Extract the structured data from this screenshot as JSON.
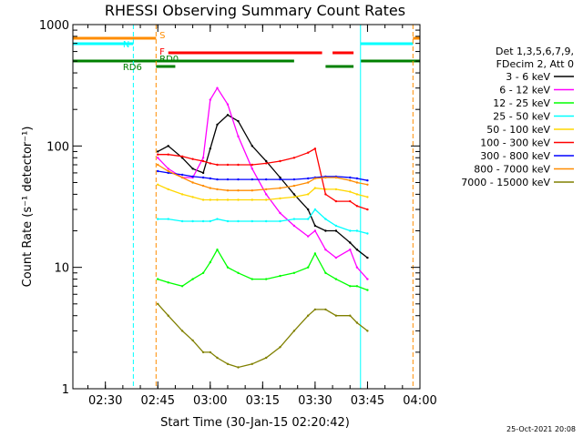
{
  "chart_data": {
    "type": "line",
    "title": "RHESSI Observing Summary Count Rates",
    "xlabel": "Start Time (30-Jan-15 02:20:42)",
    "ylabel": "Count Rate (s⁻¹ detector⁻¹)",
    "yscale": "log",
    "ylim": [
      1,
      1000
    ],
    "xlim": [
      "02:20:42",
      "04:00"
    ],
    "x_ticks": [
      "02:30",
      "02:45",
      "03:00",
      "03:15",
      "03:30",
      "03:45",
      "04:00"
    ],
    "y_ticks": [
      "1",
      "10",
      "100",
      "1000"
    ],
    "legend_header": [
      "Det 1,3,5,6,7,9,",
      "FDecim 2, Att 0"
    ],
    "legend_position": "right",
    "series": [
      {
        "name": "3 - 6 keV",
        "color": "#000000",
        "x": [
          "02:45",
          "02:48",
          "02:52",
          "02:55",
          "02:58",
          "03:00",
          "03:02",
          "03:05",
          "03:08",
          "03:12",
          "03:16",
          "03:20",
          "03:24",
          "03:28",
          "03:30",
          "03:33",
          "03:36",
          "03:40",
          "03:42",
          "03:45"
        ],
        "values": [
          90,
          100,
          80,
          65,
          60,
          95,
          150,
          180,
          160,
          100,
          75,
          55,
          40,
          30,
          22,
          20,
          20,
          16,
          14,
          12
        ]
      },
      {
        "name": "6 - 12 keV",
        "color": "#ff00ff",
        "x": [
          "02:45",
          "02:48",
          "02:52",
          "02:55",
          "02:58",
          "03:00",
          "03:02",
          "03:05",
          "03:08",
          "03:12",
          "03:16",
          "03:20",
          "03:24",
          "03:28",
          "03:30",
          "03:33",
          "03:36",
          "03:40",
          "03:42",
          "03:45"
        ],
        "values": [
          80,
          65,
          55,
          55,
          80,
          240,
          300,
          220,
          120,
          65,
          40,
          28,
          22,
          18,
          20,
          14,
          12,
          14,
          10,
          8
        ]
      },
      {
        "name": "12 - 25 keV",
        "color": "#00ff00",
        "x": [
          "02:45",
          "02:48",
          "02:52",
          "02:55",
          "02:58",
          "03:00",
          "03:02",
          "03:05",
          "03:08",
          "03:12",
          "03:16",
          "03:20",
          "03:24",
          "03:28",
          "03:30",
          "03:33",
          "03:36",
          "03:40",
          "03:42",
          "03:45"
        ],
        "values": [
          8,
          7.5,
          7,
          8,
          9,
          11,
          14,
          10,
          9,
          8,
          8,
          8.5,
          9,
          10,
          13,
          9,
          8,
          7,
          7,
          6.5
        ]
      },
      {
        "name": "25 - 50 keV",
        "color": "#00ffff",
        "x": [
          "02:45",
          "02:48",
          "02:52",
          "02:55",
          "02:58",
          "03:00",
          "03:02",
          "03:05",
          "03:08",
          "03:12",
          "03:16",
          "03:20",
          "03:24",
          "03:28",
          "03:30",
          "03:33",
          "03:36",
          "03:40",
          "03:42",
          "03:45"
        ],
        "values": [
          25,
          25,
          24,
          24,
          24,
          24,
          25,
          24,
          24,
          24,
          24,
          24,
          25,
          25,
          30,
          25,
          22,
          20,
          20,
          19
        ]
      },
      {
        "name": "50 - 100 keV",
        "color": "#ffd700",
        "x": [
          "02:45",
          "02:48",
          "02:52",
          "02:55",
          "02:58",
          "03:00",
          "03:02",
          "03:05",
          "03:08",
          "03:12",
          "03:16",
          "03:20",
          "03:24",
          "03:28",
          "03:30",
          "03:33",
          "03:36",
          "03:40",
          "03:42",
          "03:45"
        ],
        "values": [
          48,
          44,
          40,
          38,
          36,
          36,
          36,
          36,
          36,
          36,
          36,
          37,
          38,
          40,
          45,
          44,
          44,
          42,
          40,
          38
        ]
      },
      {
        "name": "100 - 300 keV",
        "color": "#ff0000",
        "x": [
          "02:45",
          "02:48",
          "02:52",
          "02:55",
          "02:58",
          "03:00",
          "03:02",
          "03:05",
          "03:08",
          "03:12",
          "03:16",
          "03:20",
          "03:24",
          "03:28",
          "03:30",
          "03:33",
          "03:36",
          "03:40",
          "03:42",
          "03:45"
        ],
        "values": [
          85,
          85,
          82,
          78,
          75,
          72,
          70,
          70,
          70,
          70,
          72,
          75,
          80,
          88,
          95,
          40,
          35,
          35,
          32,
          30
        ]
      },
      {
        "name": "300 - 800 keV",
        "color": "#0000ff",
        "x": [
          "02:45",
          "02:48",
          "02:52",
          "02:55",
          "02:58",
          "03:00",
          "03:02",
          "03:05",
          "03:08",
          "03:12",
          "03:16",
          "03:20",
          "03:24",
          "03:28",
          "03:30",
          "03:33",
          "03:36",
          "03:40",
          "03:42",
          "03:45"
        ],
        "values": [
          62,
          60,
          58,
          56,
          55,
          54,
          53,
          53,
          53,
          53,
          53,
          53,
          53,
          54,
          55,
          56,
          56,
          55,
          54,
          52
        ]
      },
      {
        "name": "800 - 7000 keV",
        "color": "#ff8c00",
        "x": [
          "02:45",
          "02:48",
          "02:52",
          "02:55",
          "02:58",
          "03:00",
          "03:02",
          "03:05",
          "03:08",
          "03:12",
          "03:16",
          "03:20",
          "03:24",
          "03:28",
          "03:30",
          "03:33",
          "03:36",
          "03:40",
          "03:42",
          "03:45"
        ],
        "values": [
          70,
          62,
          55,
          50,
          47,
          45,
          44,
          43,
          43,
          43,
          44,
          45,
          47,
          50,
          54,
          55,
          55,
          52,
          50,
          48
        ]
      },
      {
        "name": "7000 - 15000 keV",
        "color": "#808000",
        "x": [
          "02:45",
          "02:48",
          "02:52",
          "02:55",
          "02:58",
          "03:00",
          "03:02",
          "03:05",
          "03:08",
          "03:12",
          "03:16",
          "03:20",
          "03:24",
          "03:28",
          "03:30",
          "03:33",
          "03:36",
          "03:40",
          "03:42",
          "03:45"
        ],
        "values": [
          5,
          4,
          3,
          2.5,
          2,
          2,
          1.8,
          1.6,
          1.5,
          1.6,
          1.8,
          2.2,
          3,
          4,
          4.5,
          4.5,
          4,
          4,
          3.5,
          3
        ]
      }
    ],
    "annotations": [
      {
        "label": "S",
        "color": "#ff8c00"
      },
      {
        "label": "N",
        "color": "#00ffff"
      },
      {
        "label": "F",
        "color": "#ff0000"
      },
      {
        "label": "RD0",
        "color": "#008000"
      },
      {
        "label": "RD6",
        "color": "#008000"
      }
    ],
    "footer_date": "25-Oct-2021 20:08"
  }
}
